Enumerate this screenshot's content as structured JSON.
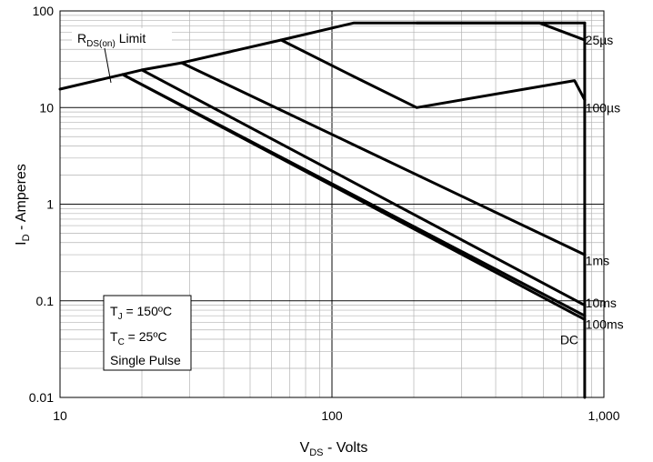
{
  "chart_data": {
    "type": "line",
    "title": "",
    "xlabel": {
      "main": "V",
      "sub": "DS",
      "rest": " - Volts"
    },
    "ylabel": {
      "main": "I",
      "sub": "D",
      "rest": " - Amperes"
    },
    "x_scale": "log",
    "y_scale": "log",
    "xlim": [
      10,
      1000
    ],
    "ylim": [
      0.01,
      100
    ],
    "x_ticks": [
      {
        "value": 10,
        "label": "10"
      },
      {
        "value": 100,
        "label": "100"
      },
      {
        "value": 1000,
        "label": "1,000"
      }
    ],
    "y_ticks": [
      {
        "value": 100,
        "label": "100"
      },
      {
        "value": 10,
        "label": "10"
      },
      {
        "value": 1,
        "label": "1"
      },
      {
        "value": 0.1,
        "label": "0.1"
      },
      {
        "value": 0.01,
        "label": "0.01"
      }
    ],
    "grid": true,
    "series": [
      {
        "name": "RDS(on) Limit",
        "x": [
          10,
          17,
          20,
          28,
          65,
          120,
          850
        ],
        "y": [
          15.5,
          22,
          24.5,
          29,
          50,
          75,
          75
        ]
      },
      {
        "name": "25µs",
        "x": [
          205,
          580,
          850
        ],
        "y": [
          75,
          75,
          50
        ]
      },
      {
        "name": "100µs",
        "x": [
          65,
          120,
          205,
          780,
          850
        ],
        "y": [
          50,
          21,
          10,
          19,
          12
        ]
      },
      {
        "name": "1ms",
        "x": [
          28,
          850
        ],
        "y": [
          29,
          0.3
        ]
      },
      {
        "name": "10ms",
        "x": [
          20,
          850
        ],
        "y": [
          24.5,
          0.09
        ]
      },
      {
        "name": "100ms",
        "x": [
          17,
          850
        ],
        "y": [
          22,
          0.07
        ]
      },
      {
        "name": "DC",
        "x": [
          17,
          850
        ],
        "y": [
          22,
          0.064
        ]
      },
      {
        "name": "",
        "x": [
          850,
          850
        ],
        "y": [
          75,
          0.01
        ]
      }
    ],
    "series_labels": [
      {
        "text": "25µs",
        "x": 855,
        "y": 50
      },
      {
        "text": "100µs",
        "x": 855,
        "y": 10
      },
      {
        "text": "1ms",
        "x": 855,
        "y": 0.26
      },
      {
        "text": "10ms",
        "x": 855,
        "y": 0.095
      },
      {
        "text": "100ms",
        "x": 855,
        "y": 0.057
      },
      {
        "text": "DC",
        "x": 690,
        "y": 0.0395
      }
    ],
    "limit_label": {
      "main": "R",
      "sub": "DS(on)",
      "rest": " Limit"
    },
    "conditions": {
      "tj": {
        "main": "T",
        "sub": "J",
        "rest": " = 150ºC"
      },
      "tc": {
        "main": "T",
        "sub": "C",
        "rest": " = 25ºC"
      },
      "pulse": "Single Pulse"
    }
  }
}
